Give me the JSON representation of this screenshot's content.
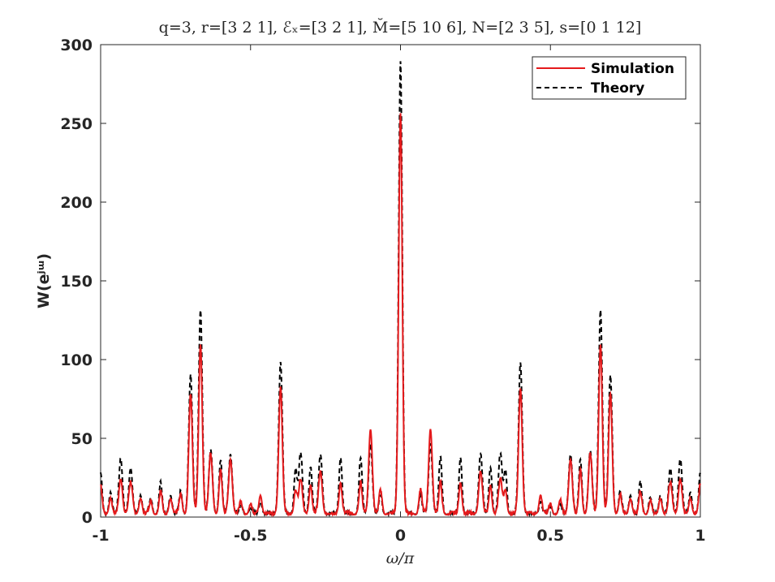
{
  "chart_data": {
    "type": "line",
    "title": "q=3, r=[3 2 1], ℰₓ=[3 2 1], M̆=[5 10 6], N=[2 3 5], s=[0 1 12]",
    "xlabel": "ω/π",
    "ylabel": "W(eʲᵚ)",
    "xlim": [
      -1,
      1
    ],
    "ylim": [
      0,
      300
    ],
    "xticks": [
      -1,
      -0.5,
      0,
      0.5,
      1
    ],
    "xtick_labels": [
      "-1",
      "-0.5",
      "0",
      "0.5",
      "1"
    ],
    "yticks": [
      0,
      50,
      100,
      150,
      200,
      250,
      300
    ],
    "ytick_labels": [
      "0",
      "50",
      "100",
      "150",
      "200",
      "250",
      "300"
    ],
    "grid": false,
    "legend_position": "top-right",
    "series": [
      {
        "name": "Simulation",
        "color": "#e41a1c",
        "style": "solid",
        "peaks": [
          [
            0.0,
            255,
            0.006
          ],
          [
            0.1,
            54,
            0.006
          ],
          [
            0.0667,
            15,
            0.005
          ],
          [
            0.133,
            20,
            0.005
          ],
          [
            0.2,
            20,
            0.005
          ],
          [
            0.267,
            27,
            0.006
          ],
          [
            0.3,
            18,
            0.005
          ],
          [
            0.333,
            22,
            0.006
          ],
          [
            0.35,
            15,
            0.005
          ],
          [
            0.4,
            80,
            0.006
          ],
          [
            0.467,
            12,
            0.005
          ],
          [
            0.5,
            6,
            0.005
          ],
          [
            0.533,
            8,
            0.005
          ],
          [
            0.567,
            35,
            0.006
          ],
          [
            0.6,
            28,
            0.005
          ],
          [
            0.633,
            38,
            0.006
          ],
          [
            0.667,
            108,
            0.006
          ],
          [
            0.7,
            76,
            0.006
          ],
          [
            0.733,
            12,
            0.005
          ],
          [
            0.767,
            10,
            0.005
          ],
          [
            0.8,
            14,
            0.005
          ],
          [
            0.833,
            8,
            0.005
          ],
          [
            0.867,
            10,
            0.005
          ],
          [
            0.9,
            20,
            0.006
          ],
          [
            0.933,
            22,
            0.006
          ],
          [
            0.967,
            10,
            0.005
          ],
          [
            1.0,
            18,
            0.005
          ]
        ]
      },
      {
        "name": "Theory",
        "color": "#000000",
        "style": "dashed",
        "peaks": [
          [
            0.0,
            288,
            0.006
          ],
          [
            0.1,
            45,
            0.006
          ],
          [
            0.0667,
            12,
            0.005
          ],
          [
            0.133,
            36,
            0.005
          ],
          [
            0.2,
            36,
            0.005
          ],
          [
            0.267,
            38,
            0.006
          ],
          [
            0.3,
            30,
            0.005
          ],
          [
            0.333,
            38,
            0.006
          ],
          [
            0.35,
            28,
            0.005
          ],
          [
            0.4,
            96,
            0.006
          ],
          [
            0.467,
            8,
            0.005
          ],
          [
            0.5,
            4,
            0.005
          ],
          [
            0.533,
            5,
            0.005
          ],
          [
            0.567,
            38,
            0.006
          ],
          [
            0.6,
            34,
            0.005
          ],
          [
            0.633,
            40,
            0.006
          ],
          [
            0.667,
            130,
            0.006
          ],
          [
            0.7,
            88,
            0.006
          ],
          [
            0.733,
            14,
            0.005
          ],
          [
            0.767,
            12,
            0.005
          ],
          [
            0.8,
            20,
            0.005
          ],
          [
            0.833,
            10,
            0.005
          ],
          [
            0.867,
            12,
            0.005
          ],
          [
            0.9,
            28,
            0.006
          ],
          [
            0.933,
            35,
            0.006
          ],
          [
            0.967,
            14,
            0.005
          ],
          [
            1.0,
            25,
            0.005
          ]
        ]
      }
    ]
  }
}
